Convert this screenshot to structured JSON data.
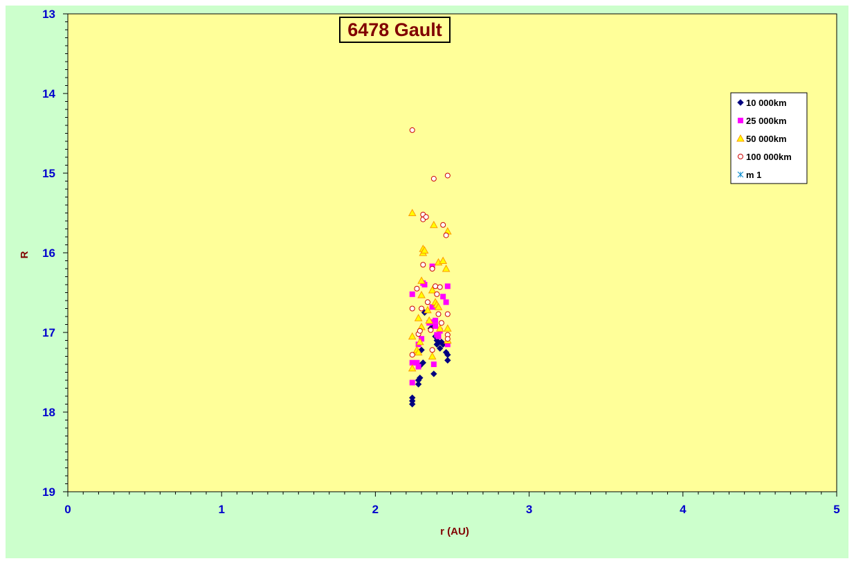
{
  "chart_data": {
    "type": "scatter",
    "title": "6478 Gault",
    "xlabel": "r (AU)",
    "ylabel": "R",
    "xlim": [
      0,
      5
    ],
    "ylim": [
      13,
      19
    ],
    "y_inverted": true,
    "x_ticks": [
      "0",
      "1",
      "2",
      "3",
      "4",
      "5"
    ],
    "y_ticks": [
      "13",
      "14",
      "15",
      "16",
      "17",
      "18",
      "19"
    ],
    "plot_background": "#ffff99",
    "frame_background": "#ccffcc",
    "grid": false,
    "legend_position": "top-right",
    "series": [
      {
        "name": "10 000km",
        "marker": "diamond",
        "color": "#000080",
        "points": [
          [
            2.24,
            17.82
          ],
          [
            2.24,
            17.86
          ],
          [
            2.24,
            17.9
          ],
          [
            2.28,
            17.65
          ],
          [
            2.28,
            17.6
          ],
          [
            2.29,
            17.57
          ],
          [
            2.29,
            17.42
          ],
          [
            2.31,
            17.38
          ],
          [
            2.3,
            17.22
          ],
          [
            2.32,
            16.75
          ],
          [
            2.36,
            16.95
          ],
          [
            2.37,
            16.93
          ],
          [
            2.38,
            17.52
          ],
          [
            2.39,
            17.05
          ],
          [
            2.4,
            17.1
          ],
          [
            2.4,
            17.15
          ],
          [
            2.41,
            17.13
          ],
          [
            2.42,
            17.2
          ],
          [
            2.43,
            17.12
          ],
          [
            2.44,
            17.15
          ],
          [
            2.46,
            17.25
          ],
          [
            2.47,
            17.28
          ],
          [
            2.47,
            17.35
          ]
        ]
      },
      {
        "name": "25 000km",
        "marker": "square",
        "color": "#ff00ff",
        "points": [
          [
            2.24,
            16.52
          ],
          [
            2.24,
            17.38
          ],
          [
            2.24,
            17.63
          ],
          [
            2.27,
            17.38
          ],
          [
            2.28,
            17.15
          ],
          [
            2.28,
            17.43
          ],
          [
            2.3,
            17.08
          ],
          [
            2.31,
            16.38
          ],
          [
            2.32,
            16.4
          ],
          [
            2.35,
            16.88
          ],
          [
            2.36,
            16.87
          ],
          [
            2.37,
            16.68
          ],
          [
            2.37,
            16.17
          ],
          [
            2.38,
            17.4
          ],
          [
            2.39,
            16.85
          ],
          [
            2.39,
            16.92
          ],
          [
            2.4,
            17.03
          ],
          [
            2.41,
            17.05
          ],
          [
            2.42,
            16.98
          ],
          [
            2.44,
            16.55
          ],
          [
            2.46,
            16.62
          ],
          [
            2.47,
            16.42
          ],
          [
            2.47,
            17.15
          ]
        ]
      },
      {
        "name": "50 000km",
        "marker": "triangle",
        "color": "#ff9900",
        "points": [
          [
            2.24,
            15.5
          ],
          [
            2.24,
            17.05
          ],
          [
            2.24,
            17.45
          ],
          [
            2.27,
            17.22
          ],
          [
            2.28,
            16.82
          ],
          [
            2.28,
            17.25
          ],
          [
            2.29,
            17.12
          ],
          [
            2.3,
            16.93
          ],
          [
            2.3,
            16.53
          ],
          [
            2.3,
            16.35
          ],
          [
            2.31,
            15.95
          ],
          [
            2.31,
            16.0
          ],
          [
            2.32,
            15.97
          ],
          [
            2.34,
            16.72
          ],
          [
            2.35,
            16.85
          ],
          [
            2.37,
            17.3
          ],
          [
            2.37,
            16.47
          ],
          [
            2.38,
            15.65
          ],
          [
            2.39,
            16.62
          ],
          [
            2.4,
            16.65
          ],
          [
            2.41,
            16.12
          ],
          [
            2.41,
            16.68
          ],
          [
            2.42,
            16.95
          ],
          [
            2.44,
            16.1
          ],
          [
            2.46,
            16.2
          ],
          [
            2.47,
            15.73
          ],
          [
            2.47,
            16.95
          ],
          [
            2.47,
            17.1
          ]
        ]
      },
      {
        "name": "100 000km",
        "marker": "circle",
        "color": "#cc0000",
        "points": [
          [
            2.24,
            14.46
          ],
          [
            2.24,
            16.7
          ],
          [
            2.24,
            17.28
          ],
          [
            2.27,
            16.45
          ],
          [
            2.28,
            17.02
          ],
          [
            2.29,
            16.98
          ],
          [
            2.3,
            16.7
          ],
          [
            2.31,
            15.52
          ],
          [
            2.31,
            15.58
          ],
          [
            2.31,
            16.15
          ],
          [
            2.33,
            15.55
          ],
          [
            2.34,
            16.62
          ],
          [
            2.36,
            16.97
          ],
          [
            2.37,
            16.2
          ],
          [
            2.37,
            17.22
          ],
          [
            2.38,
            15.07
          ],
          [
            2.39,
            16.42
          ],
          [
            2.4,
            16.52
          ],
          [
            2.41,
            16.77
          ],
          [
            2.42,
            16.43
          ],
          [
            2.43,
            16.88
          ],
          [
            2.44,
            15.65
          ],
          [
            2.46,
            15.78
          ],
          [
            2.47,
            15.03
          ],
          [
            2.47,
            16.77
          ],
          [
            2.47,
            17.03
          ],
          [
            2.47,
            17.08
          ]
        ]
      },
      {
        "name": "m 1",
        "marker": "star",
        "color": "#0088cc",
        "points": []
      }
    ]
  }
}
